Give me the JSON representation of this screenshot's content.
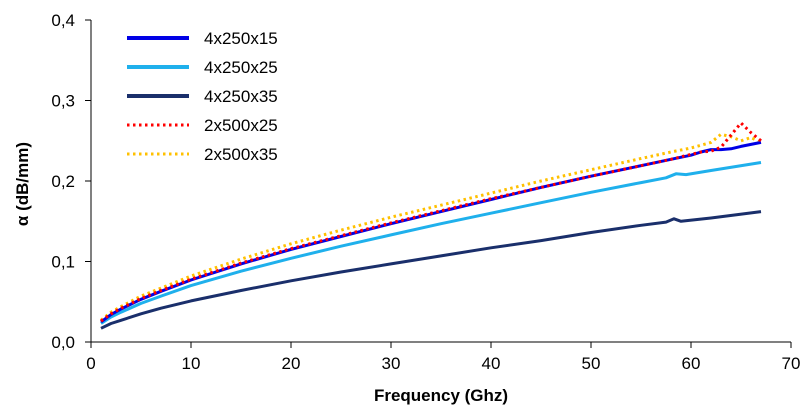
{
  "chart_data": {
    "type": "line",
    "title": "",
    "xlabel": "Frequency (Ghz)",
    "ylabel": "α (dB/mm)",
    "xlim": [
      0,
      70
    ],
    "ylim": [
      0,
      0.4
    ],
    "x_ticks": [
      "0",
      "10",
      "20",
      "30",
      "40",
      "50",
      "60",
      "70"
    ],
    "y_ticks": [
      "0,0",
      "0,1",
      "0,2",
      "0,3",
      "0,4"
    ],
    "grid": false,
    "legend_position": "top-left",
    "series": [
      {
        "name": "4x250x15",
        "color": "#0000e6",
        "style": "solid",
        "points": [
          [
            1,
            0.025
          ],
          [
            2,
            0.034
          ],
          [
            3,
            0.041
          ],
          [
            5,
            0.053
          ],
          [
            7,
            0.063
          ],
          [
            10,
            0.077
          ],
          [
            15,
            0.097
          ],
          [
            20,
            0.115
          ],
          [
            25,
            0.131
          ],
          [
            30,
            0.147
          ],
          [
            35,
            0.162
          ],
          [
            40,
            0.177
          ],
          [
            45,
            0.192
          ],
          [
            50,
            0.206
          ],
          [
            55,
            0.219
          ],
          [
            58,
            0.227
          ],
          [
            60,
            0.232
          ],
          [
            61,
            0.236
          ],
          [
            62,
            0.239
          ],
          [
            63,
            0.239
          ],
          [
            64,
            0.24
          ],
          [
            65,
            0.243
          ],
          [
            67,
            0.248
          ]
        ]
      },
      {
        "name": "4x250x25",
        "color": "#1fb0ec",
        "style": "solid",
        "points": [
          [
            1,
            0.023
          ],
          [
            2,
            0.031
          ],
          [
            3,
            0.037
          ],
          [
            5,
            0.048
          ],
          [
            7,
            0.057
          ],
          [
            10,
            0.07
          ],
          [
            15,
            0.088
          ],
          [
            20,
            0.104
          ],
          [
            25,
            0.119
          ],
          [
            30,
            0.133
          ],
          [
            35,
            0.147
          ],
          [
            40,
            0.16
          ],
          [
            45,
            0.173
          ],
          [
            50,
            0.186
          ],
          [
            55,
            0.198
          ],
          [
            57.5,
            0.204
          ],
          [
            58.5,
            0.209
          ],
          [
            59.5,
            0.208
          ],
          [
            62,
            0.213
          ],
          [
            67,
            0.223
          ]
        ]
      },
      {
        "name": "4x250x35",
        "color": "#1a2f6b",
        "style": "solid",
        "points": [
          [
            1,
            0.017
          ],
          [
            2,
            0.023
          ],
          [
            3,
            0.027
          ],
          [
            5,
            0.035
          ],
          [
            7,
            0.042
          ],
          [
            10,
            0.051
          ],
          [
            15,
            0.064
          ],
          [
            20,
            0.076
          ],
          [
            25,
            0.087
          ],
          [
            30,
            0.097
          ],
          [
            35,
            0.107
          ],
          [
            40,
            0.117
          ],
          [
            45,
            0.126
          ],
          [
            50,
            0.136
          ],
          [
            55,
            0.145
          ],
          [
            57.5,
            0.149
          ],
          [
            58.3,
            0.153
          ],
          [
            59,
            0.15
          ],
          [
            62,
            0.154
          ],
          [
            67,
            0.162
          ]
        ]
      },
      {
        "name": "2x500x25",
        "color": "#ff0000",
        "style": "dotted",
        "points": [
          [
            1,
            0.026
          ],
          [
            2,
            0.035
          ],
          [
            3,
            0.042
          ],
          [
            5,
            0.054
          ],
          [
            7,
            0.064
          ],
          [
            10,
            0.078
          ],
          [
            15,
            0.098
          ],
          [
            20,
            0.116
          ],
          [
            25,
            0.132
          ],
          [
            30,
            0.148
          ],
          [
            35,
            0.163
          ],
          [
            40,
            0.178
          ],
          [
            45,
            0.192
          ],
          [
            50,
            0.206
          ],
          [
            55,
            0.219
          ],
          [
            58,
            0.227
          ],
          [
            60,
            0.233
          ],
          [
            61,
            0.236
          ],
          [
            62,
            0.237
          ],
          [
            63,
            0.242
          ],
          [
            64,
            0.257
          ],
          [
            65,
            0.272
          ],
          [
            66,
            0.26
          ],
          [
            67,
            0.25
          ]
        ]
      },
      {
        "name": "2x500x35",
        "color": "#ffc000",
        "style": "dotted",
        "points": [
          [
            1,
            0.027
          ],
          [
            2,
            0.037
          ],
          [
            3,
            0.044
          ],
          [
            5,
            0.057
          ],
          [
            7,
            0.067
          ],
          [
            10,
            0.082
          ],
          [
            15,
            0.103
          ],
          [
            20,
            0.122
          ],
          [
            25,
            0.139
          ],
          [
            30,
            0.155
          ],
          [
            35,
            0.17
          ],
          [
            40,
            0.185
          ],
          [
            45,
            0.2
          ],
          [
            50,
            0.214
          ],
          [
            55,
            0.228
          ],
          [
            58,
            0.236
          ],
          [
            60,
            0.241
          ],
          [
            62,
            0.248
          ],
          [
            63,
            0.258
          ],
          [
            64,
            0.255
          ],
          [
            65,
            0.25
          ],
          [
            66,
            0.254
          ],
          [
            67,
            0.248
          ]
        ]
      }
    ]
  }
}
